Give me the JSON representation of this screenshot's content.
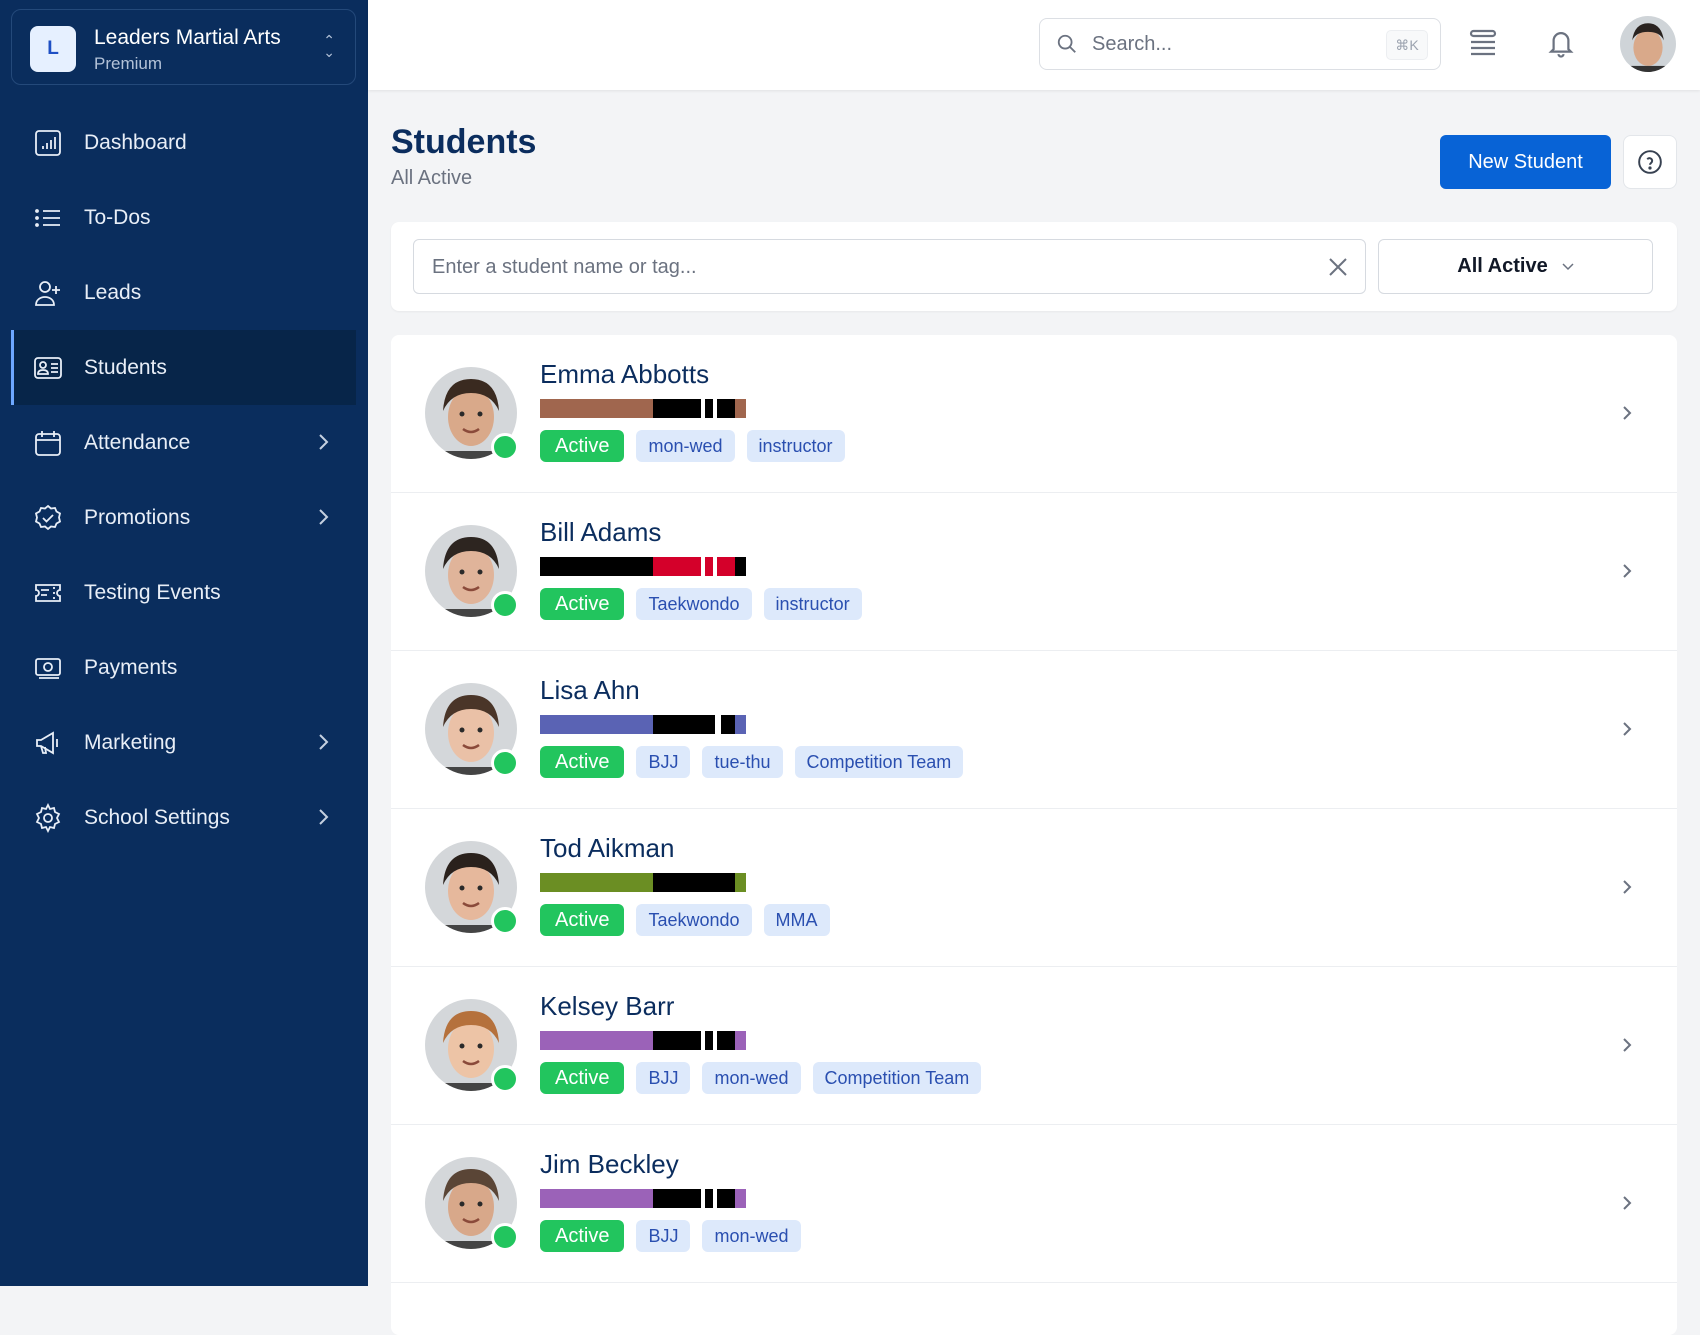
{
  "org": {
    "initial": "L",
    "name": "Leaders Martial Arts",
    "plan": "Premium"
  },
  "nav": [
    {
      "label": "Dashboard",
      "icon": "chart-icon",
      "active": false,
      "expand": false
    },
    {
      "label": "To-Dos",
      "icon": "list-icon",
      "active": false,
      "expand": false
    },
    {
      "label": "Leads",
      "icon": "user-plus-icon",
      "active": false,
      "expand": false
    },
    {
      "label": "Students",
      "icon": "id-card-icon",
      "active": true,
      "expand": false
    },
    {
      "label": "Attendance",
      "icon": "calendar-icon",
      "active": false,
      "expand": true
    },
    {
      "label": "Promotions",
      "icon": "check-badge-icon",
      "active": false,
      "expand": true
    },
    {
      "label": "Testing Events",
      "icon": "ticket-icon",
      "active": false,
      "expand": false
    },
    {
      "label": "Payments",
      "icon": "cash-icon",
      "active": false,
      "expand": false
    },
    {
      "label": "Marketing",
      "icon": "megaphone-icon",
      "active": false,
      "expand": true
    },
    {
      "label": "School Settings",
      "icon": "gear-icon",
      "active": false,
      "expand": true
    }
  ],
  "topbar": {
    "search_placeholder": "Search...",
    "shortcut": "⌘K"
  },
  "page": {
    "title": "Students",
    "subtitle": "All Active",
    "new_button": "New Student"
  },
  "filter": {
    "placeholder": "Enter a student name or tag...",
    "select_value": "All Active"
  },
  "colors": {
    "sidebar": "#0a2d5d",
    "primary": "#0863d6",
    "active": "#22c55e",
    "tag_bg": "#dde9fb"
  },
  "students": [
    {
      "name": "Emma Abbotts",
      "status": "Active",
      "tags": [
        "mon-wed",
        "instructor"
      ],
      "belt": {
        "color": "#a0664e",
        "rank": "#000000",
        "stripes": 2,
        "tip": "#a0664e"
      },
      "skin": "#d9a98a",
      "hair": "#3a2a20"
    },
    {
      "name": "Bill Adams",
      "status": "Active",
      "tags": [
        "Taekwondo",
        "instructor"
      ],
      "belt": {
        "color": "#000000",
        "rank": "#d4002a",
        "stripes": 2,
        "tip": "#000000"
      },
      "skin": "#e0b49a",
      "hair": "#2d2520"
    },
    {
      "name": "Lisa Ahn",
      "status": "Active",
      "tags": [
        "BJJ",
        "tue-thu",
        "Competition Team"
      ],
      "belt": {
        "color": "#5a63b4",
        "rank": "#000000",
        "stripes": 1,
        "tip": "#5a63b4"
      },
      "skin": "#eac1a7",
      "hair": "#4a3528"
    },
    {
      "name": "Tod Aikman",
      "status": "Active",
      "tags": [
        "Taekwondo",
        "MMA"
      ],
      "belt": {
        "color": "#6b8e23",
        "rank": "#000000",
        "stripes": 0,
        "tip": "#6b8e23"
      },
      "skin": "#e6b89c",
      "hair": "#2a211c"
    },
    {
      "name": "Kelsey Barr",
      "status": "Active",
      "tags": [
        "BJJ",
        "mon-wed",
        "Competition Team"
      ],
      "belt": {
        "color": "#9b62b8",
        "rank": "#000000",
        "stripes": 2,
        "tip": "#9b62b8"
      },
      "skin": "#edc4a6",
      "hair": "#b5713c"
    },
    {
      "name": "Jim Beckley",
      "status": "Active",
      "tags": [
        "BJJ",
        "mon-wed"
      ],
      "belt": {
        "color": "#9b62b8",
        "rank": "#000000",
        "stripes": 2,
        "tip": "#9b62b8"
      },
      "skin": "#d8a88a",
      "hair": "#5a4536"
    }
  ]
}
